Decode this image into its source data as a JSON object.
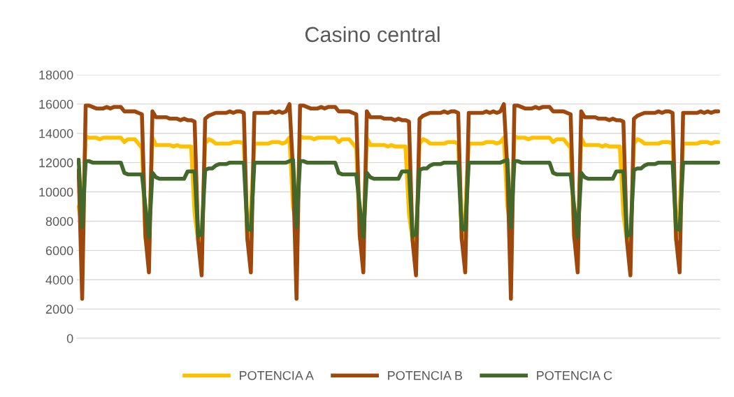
{
  "chart_data": {
    "type": "line",
    "title": "Casino central",
    "categories": [
      null,
      null,
      null,
      null,
      null,
      null,
      null,
      null,
      null,
      null,
      null,
      null,
      null,
      null,
      null,
      null,
      null,
      null,
      null,
      null,
      null,
      null,
      null,
      null,
      null,
      null,
      null,
      null,
      null,
      null,
      null,
      null,
      null,
      null,
      null,
      null,
      null,
      null,
      null,
      null,
      null,
      null,
      null,
      null,
      null,
      null,
      null,
      null,
      null,
      null,
      null,
      null,
      null,
      null,
      null,
      null,
      null,
      null,
      null,
      null,
      null,
      null,
      null,
      null,
      null,
      null,
      null,
      null,
      null,
      null,
      null,
      null,
      null,
      null,
      null,
      null,
      null,
      null,
      null,
      null,
      null,
      null,
      null,
      null,
      null,
      null,
      null,
      null,
      null,
      null,
      null,
      null,
      null,
      null,
      null,
      null,
      null,
      null,
      null,
      null,
      null,
      null,
      null,
      null,
      null,
      null,
      null,
      null,
      null,
      null,
      null,
      null,
      null,
      null,
      null,
      null,
      null,
      null,
      null,
      null,
      null,
      null,
      null,
      null,
      null,
      null,
      null,
      null,
      null,
      null,
      null,
      null,
      null,
      null,
      null,
      null,
      null,
      null,
      null,
      null,
      null,
      null,
      null,
      null,
      null,
      null,
      null,
      null,
      null,
      null,
      null,
      null,
      null,
      null,
      null,
      null,
      null,
      null,
      null,
      null,
      null,
      null,
      null,
      null,
      null,
      null,
      null,
      null,
      null,
      null,
      null,
      null,
      null,
      null,
      null,
      null,
      null,
      null,
      null,
      null,
      null,
      null,
      null
    ],
    "series": [
      {
        "name": "POTENCIA A",
        "color": "#ffc000",
        "values": [
          9000,
          7500,
          13800,
          13700,
          13700,
          13700,
          13600,
          13700,
          13700,
          13700,
          13700,
          13700,
          13700,
          13400,
          13600,
          13600,
          13600,
          13300,
          13000,
          6800,
          6900,
          13700,
          13200,
          13200,
          13200,
          13200,
          13200,
          13100,
          13200,
          13100,
          13100,
          13100,
          13100,
          8500,
          6700,
          6600,
          13300,
          13600,
          13500,
          13300,
          13300,
          13300,
          13300,
          13300,
          13400,
          13400,
          13400,
          13300,
          6700,
          8800,
          13300,
          13300,
          13300,
          13300,
          13300,
          13400,
          13400,
          13400,
          13300,
          13400,
          13700,
          9000,
          7500,
          13800,
          13700,
          13700,
          13700,
          13600,
          13700,
          13700,
          13700,
          13700,
          13700,
          13700,
          13400,
          13600,
          13600,
          13600,
          13300,
          13000,
          6800,
          6900,
          13700,
          13200,
          13200,
          13200,
          13200,
          13200,
          13100,
          13200,
          13100,
          13100,
          13100,
          13100,
          8500,
          6700,
          6600,
          13300,
          13600,
          13500,
          13300,
          13300,
          13300,
          13300,
          13300,
          13400,
          13400,
          13400,
          13300,
          6700,
          8800,
          13300,
          13300,
          13300,
          13300,
          13300,
          13400,
          13400,
          13400,
          13300,
          13400,
          13700,
          9000,
          7500,
          13800,
          13700,
          13700,
          13700,
          13600,
          13700,
          13700,
          13700,
          13700,
          13700,
          13700,
          13400,
          13600,
          13600,
          13600,
          13300,
          13000,
          6800,
          6900,
          13700,
          13200,
          13200,
          13200,
          13200,
          13200,
          13100,
          13200,
          13100,
          13100,
          13100,
          13100,
          8500,
          6700,
          6600,
          13300,
          13600,
          13500,
          13300,
          13300,
          13300,
          13300,
          13300,
          13400,
          13400,
          13400,
          13300,
          6700,
          8800,
          13300,
          13300,
          13300,
          13300,
          13300,
          13400,
          13400,
          13400,
          13300,
          13400,
          13400
        ]
      },
      {
        "name": "POTENCIA B",
        "color": "#9e480e",
        "values": [
          11500,
          2700,
          15900,
          15900,
          15800,
          15700,
          15700,
          15700,
          15800,
          15700,
          15800,
          15800,
          15800,
          15500,
          15500,
          15500,
          15500,
          15400,
          15300,
          7000,
          4500,
          15500,
          15100,
          15100,
          15100,
          15100,
          15000,
          15000,
          15000,
          14900,
          15000,
          14900,
          14900,
          14800,
          6700,
          4300,
          15000,
          15200,
          15300,
          15400,
          15400,
          15400,
          15400,
          15500,
          15400,
          15500,
          15500,
          15400,
          6800,
          4500,
          15400,
          15400,
          15400,
          15400,
          15400,
          15500,
          15400,
          15500,
          15400,
          15500,
          16000,
          11500,
          2700,
          15900,
          15900,
          15800,
          15700,
          15700,
          15700,
          15800,
          15700,
          15800,
          15800,
          15800,
          15500,
          15500,
          15500,
          15500,
          15400,
          15300,
          7000,
          4500,
          15500,
          15100,
          15100,
          15100,
          15100,
          15000,
          15000,
          15000,
          14900,
          15000,
          14900,
          14900,
          14800,
          6700,
          4300,
          15000,
          15200,
          15300,
          15400,
          15400,
          15400,
          15400,
          15500,
          15400,
          15500,
          15500,
          15400,
          6800,
          4500,
          15400,
          15400,
          15400,
          15400,
          15400,
          15500,
          15400,
          15500,
          15400,
          15500,
          16000,
          11500,
          2700,
          15900,
          15900,
          15800,
          15700,
          15700,
          15700,
          15800,
          15700,
          15800,
          15800,
          15800,
          15500,
          15500,
          15500,
          15500,
          15400,
          15300,
          7000,
          4500,
          15500,
          15100,
          15100,
          15100,
          15100,
          15000,
          15000,
          15000,
          14900,
          15000,
          14900,
          14900,
          14800,
          6700,
          4300,
          15000,
          15200,
          15300,
          15400,
          15400,
          15400,
          15400,
          15500,
          15400,
          15500,
          15500,
          15400,
          6800,
          4500,
          15400,
          15400,
          15400,
          15400,
          15400,
          15500,
          15400,
          15500,
          15400,
          15500,
          15500
        ]
      },
      {
        "name": "POTENCIA C",
        "color": "#43682b",
        "values": [
          12200,
          7600,
          12100,
          12100,
          12000,
          12000,
          12000,
          12000,
          12000,
          12000,
          12000,
          12000,
          12000,
          11300,
          11200,
          11200,
          11200,
          11200,
          11200,
          9000,
          6900,
          11300,
          11000,
          10900,
          10900,
          10900,
          10900,
          10900,
          10900,
          10900,
          10900,
          11400,
          11400,
          11400,
          7000,
          7100,
          11500,
          11600,
          11600,
          11800,
          11900,
          11900,
          11900,
          12000,
          12000,
          12000,
          12000,
          12000,
          7500,
          7400,
          12000,
          12000,
          12000,
          12000,
          12000,
          12000,
          12000,
          12000,
          12000,
          12000,
          12100,
          12200,
          7600,
          12100,
          12100,
          12000,
          12000,
          12000,
          12000,
          12000,
          12000,
          12000,
          12000,
          12000,
          11300,
          11200,
          11200,
          11200,
          11200,
          11200,
          9000,
          6900,
          11300,
          11000,
          10900,
          10900,
          10900,
          10900,
          10900,
          10900,
          10900,
          10900,
          11400,
          11400,
          11400,
          7000,
          7100,
          11500,
          11600,
          11600,
          11800,
          11900,
          11900,
          11900,
          12000,
          12000,
          12000,
          12000,
          12000,
          7500,
          7400,
          12000,
          12000,
          12000,
          12000,
          12000,
          12000,
          12000,
          12000,
          12000,
          12000,
          12100,
          12200,
          7600,
          12100,
          12100,
          12000,
          12000,
          12000,
          12000,
          12000,
          12000,
          12000,
          12000,
          12000,
          11300,
          11200,
          11200,
          11200,
          11200,
          11200,
          9000,
          6900,
          11300,
          11000,
          10900,
          10900,
          10900,
          10900,
          10900,
          10900,
          10900,
          10900,
          11400,
          11400,
          11400,
          7000,
          7100,
          11500,
          11600,
          11600,
          11800,
          11900,
          11900,
          11900,
          12000,
          12000,
          12000,
          12000,
          12000,
          7500,
          7400,
          12000,
          12000,
          12000,
          12000,
          12000,
          12000,
          12000,
          12000,
          12000,
          12000,
          12000
        ]
      }
    ],
    "ylim": [
      0,
      18000
    ],
    "yticks": [
      0,
      2000,
      4000,
      6000,
      8000,
      10000,
      12000,
      14000,
      16000,
      18000
    ],
    "grid": "y",
    "legend": "bottom",
    "tick_labels": "y",
    "line_style": "solid",
    "marker": "none"
  }
}
